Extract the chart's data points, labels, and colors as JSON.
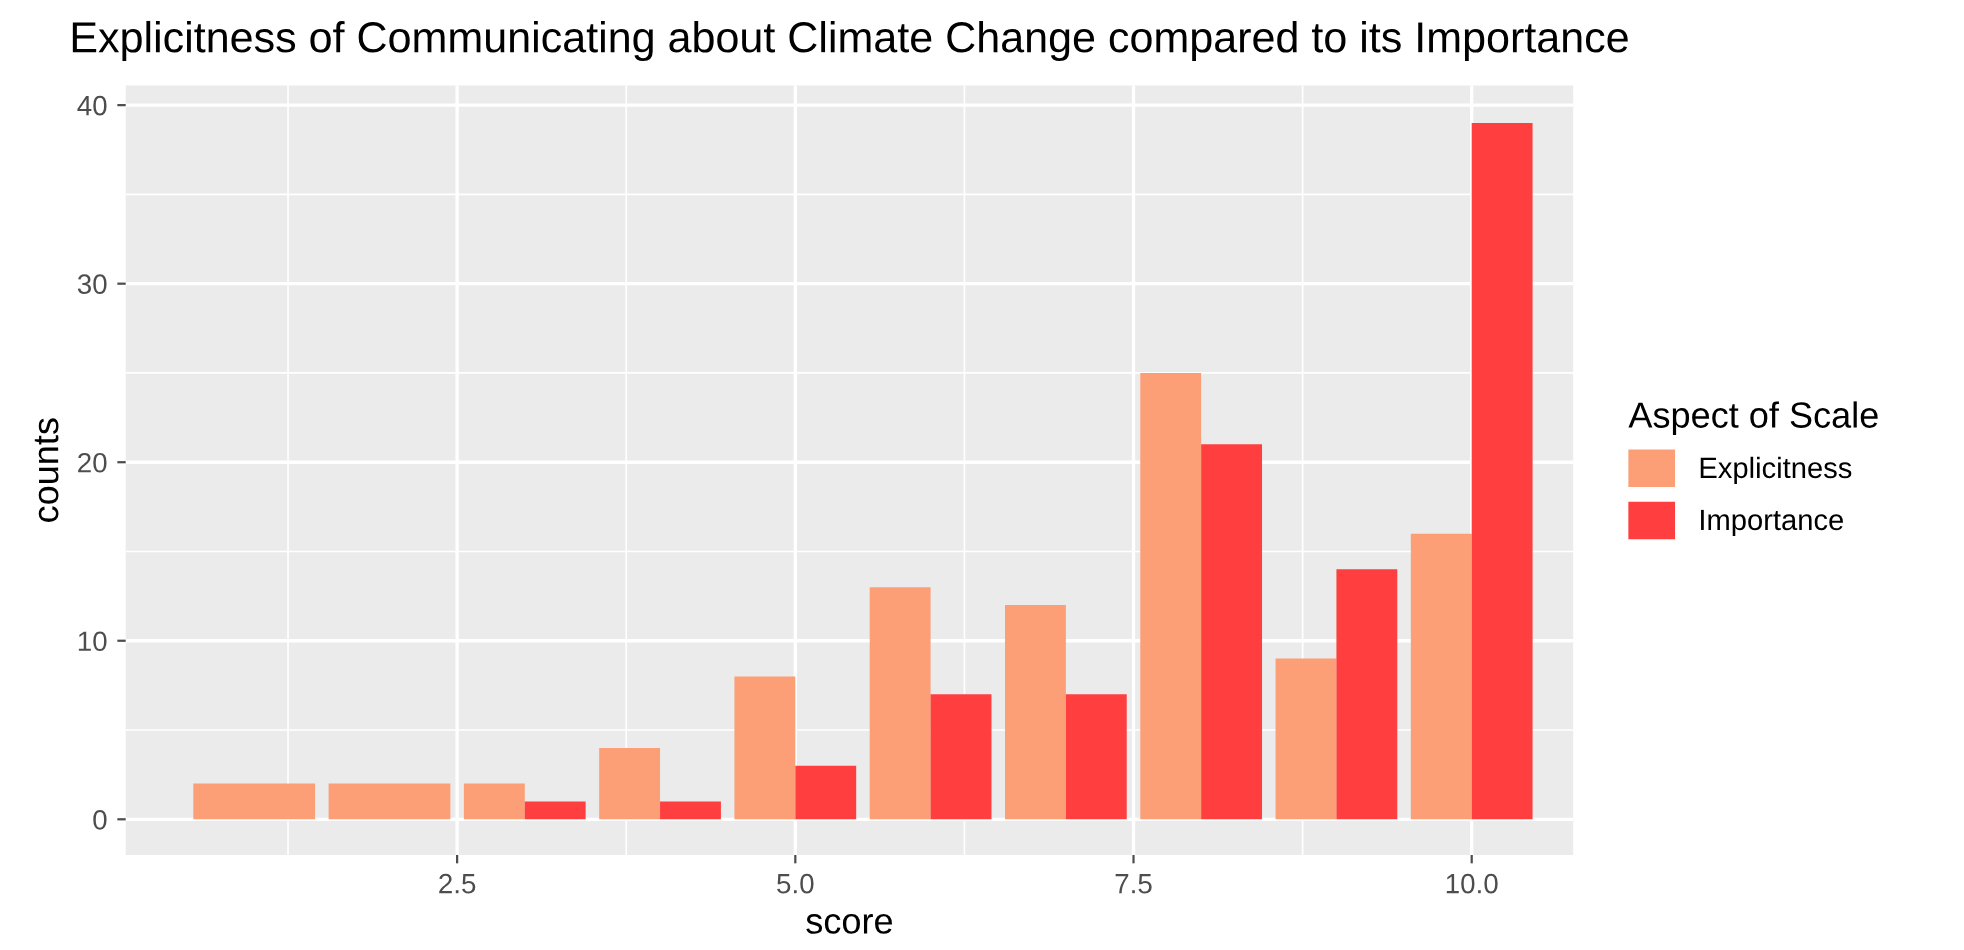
{
  "chart_data": {
    "type": "bar",
    "title": "Explicitness of Communicating about Climate Change compared to its Importance",
    "xlabel": "score",
    "ylabel": "counts",
    "legend_title": "Aspect of Scale",
    "x": [
      1,
      2,
      3,
      4,
      5,
      6,
      7,
      8,
      9,
      10
    ],
    "series": [
      {
        "name": "Explicitness",
        "color": "#fc9f77",
        "values": [
          2,
          2,
          2,
          4,
          8,
          13,
          12,
          25,
          9,
          16
        ]
      },
      {
        "name": "Importance",
        "color": "#ff3f3f",
        "values": [
          null,
          null,
          1,
          1,
          3,
          7,
          7,
          21,
          14,
          39
        ]
      }
    ],
    "xlim": [
      0.05,
      10.75
    ],
    "ylim": [
      -2,
      41.1
    ],
    "xticks": [
      2.5,
      {
        "value": 5,
        "label": "5.0"
      },
      7.5,
      {
        "value": 10,
        "label": "10.0"
      }
    ],
    "yticks": [
      0,
      10,
      20,
      30,
      40
    ],
    "grid": true,
    "legend": "right"
  }
}
